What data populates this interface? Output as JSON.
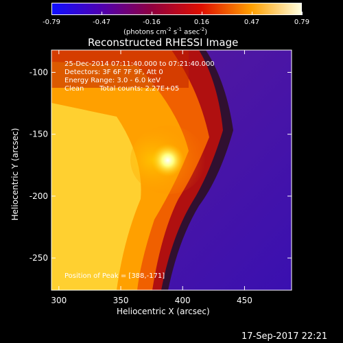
{
  "colorbar": {
    "tick_labels": [
      "-0.79",
      "-0.47",
      "-0.16",
      "0.16",
      "0.47",
      "0.79"
    ],
    "units": "(photons cm",
    "units_sup1": "-2",
    "units_mid1": " s",
    "units_sup2": "-1",
    "units_mid2": " asec",
    "units_sup3": "-2",
    "units_end": ")",
    "colors": [
      "#1010ff",
      "#5000b0",
      "#900040",
      "#e01000",
      "#ffa000",
      "#ffffe0"
    ]
  },
  "title": "Reconstructed RHESSI Image",
  "annotation": {
    "time_range": "25-Dec-2014 07:11:40.000 to 07:21:40.000",
    "detectors": "Detectors: 3F 6F 7F 9F, Att 0",
    "energy": "Energy Range: 3.0 - 6.0 keV",
    "algorithm": "Clean",
    "counts": "Total counts: 2.27E+05",
    "peak": "Position of Peak = [388,-171]"
  },
  "axes": {
    "xlabel": "Heliocentric X (arcsec)",
    "ylabel": "Heliocentric Y (arcsec)",
    "x_ticks": [
      300,
      350,
      400,
      450
    ],
    "y_ticks": [
      -100,
      -150,
      -200,
      -250
    ],
    "x_tick_labels": [
      "300",
      "350",
      "400",
      "450"
    ],
    "y_tick_labels": [
      "-100",
      "-150",
      "-200",
      "-250"
    ],
    "xlim": [
      294,
      488
    ],
    "ylim": [
      -276,
      -82
    ]
  },
  "peak": {
    "x": 388,
    "y": -171
  },
  "footer_date": "17-Sep-2017 22:21"
}
